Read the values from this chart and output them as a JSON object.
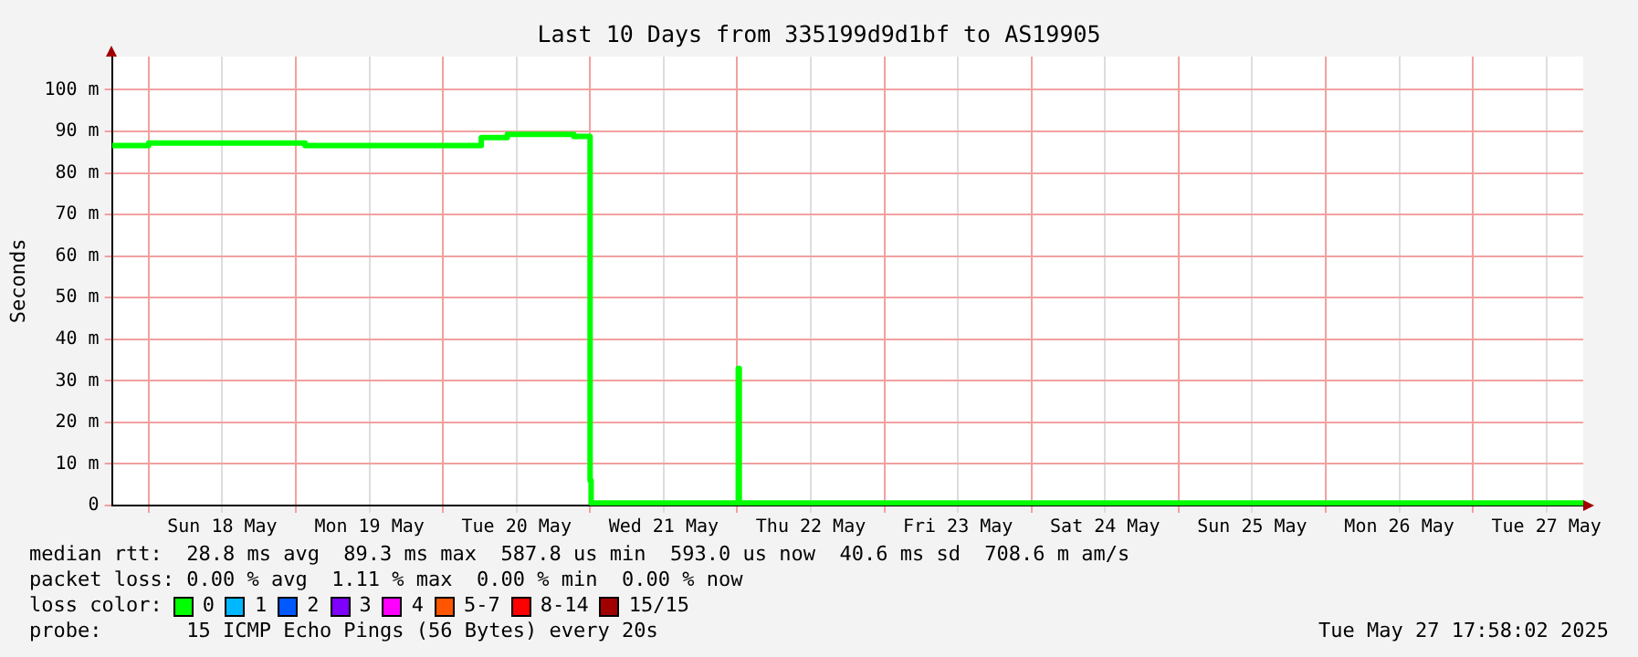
{
  "chart_data": {
    "type": "step",
    "title": "Last 10 Days from 335199d9d1bf to AS19905",
    "ylabel": "Seconds",
    "x": [
      "2025-05-17T18:00",
      "2025-05-18T00:00",
      "2025-05-19T01:30",
      "2025-05-20T06:15",
      "2025-05-20T10:30",
      "2025-05-20T21:20",
      "2025-05-21T00:00",
      "2025-05-21T00:10",
      "2025-05-22T00:10",
      "2025-05-22T00:20",
      "2025-05-27T18:00"
    ],
    "series": [
      {
        "name": "0",
        "color": "#00ff00",
        "values": [
          86.6,
          87.2,
          86.6,
          88.5,
          89.3,
          88.8,
          6,
          0.6,
          33,
          0.6,
          0.6
        ]
      },
      {
        "name": "1",
        "color": "#00b8ff",
        "values": [
          null,
          null,
          null,
          null,
          null,
          null,
          null,
          null,
          null,
          null,
          null
        ]
      },
      {
        "name": "2",
        "color": "#0059ff",
        "values": [
          null,
          null,
          null,
          null,
          null,
          null,
          null,
          null,
          null,
          null,
          null
        ]
      },
      {
        "name": "3",
        "color": "#7e00ff",
        "values": [
          null,
          null,
          null,
          null,
          null,
          null,
          null,
          null,
          null,
          null,
          null
        ]
      },
      {
        "name": "4",
        "color": "#ff00ff",
        "values": [
          null,
          null,
          null,
          null,
          null,
          null,
          null,
          null,
          null,
          null,
          null
        ]
      },
      {
        "name": "5-7",
        "color": "#ff5500",
        "values": [
          null,
          null,
          null,
          null,
          null,
          null,
          null,
          null,
          null,
          null,
          null
        ]
      },
      {
        "name": "8-14",
        "color": "#ff0000",
        "values": [
          null,
          null,
          null,
          null,
          null,
          null,
          null,
          null,
          null,
          null,
          null
        ]
      },
      {
        "name": "15/15",
        "color": "#a10000",
        "values": [
          null,
          null,
          null,
          null,
          null,
          null,
          null,
          null,
          null,
          null,
          null
        ]
      }
    ],
    "legend_title": "loss color:",
    "legend": "bottom",
    "xlim": [
      "2025-05-17T18:00",
      "2025-05-27T18:00"
    ],
    "xticks": [
      {
        "value": "2025-05-18T00:00",
        "label": null
      },
      {
        "value": "2025-05-18T12:00",
        "label": "Sun 18 May"
      },
      {
        "value": "2025-05-19T00:00",
        "label": null
      },
      {
        "value": "2025-05-19T12:00",
        "label": "Mon 19 May"
      },
      {
        "value": "2025-05-20T00:00",
        "label": null
      },
      {
        "value": "2025-05-20T12:00",
        "label": "Tue 20 May"
      },
      {
        "value": "2025-05-21T00:00",
        "label": null
      },
      {
        "value": "2025-05-21T12:00",
        "label": "Wed 21 May"
      },
      {
        "value": "2025-05-22T00:00",
        "label": null
      },
      {
        "value": "2025-05-22T12:00",
        "label": "Thu 22 May"
      },
      {
        "value": "2025-05-23T00:00",
        "label": null
      },
      {
        "value": "2025-05-23T12:00",
        "label": "Fri 23 May"
      },
      {
        "value": "2025-05-24T00:00",
        "label": null
      },
      {
        "value": "2025-05-24T12:00",
        "label": "Sat 24 May"
      },
      {
        "value": "2025-05-25T00:00",
        "label": null
      },
      {
        "value": "2025-05-25T12:00",
        "label": "Sun 25 May"
      },
      {
        "value": "2025-05-26T00:00",
        "label": null
      },
      {
        "value": "2025-05-26T12:00",
        "label": "Mon 26 May"
      },
      {
        "value": "2025-05-27T00:00",
        "label": null
      },
      {
        "value": "2025-05-27T12:00",
        "label": "Tue 27 May"
      }
    ],
    "ylim": [
      0,
      108
    ],
    "yticks": [
      0,
      {
        "value": 10,
        "label": "10 m"
      },
      {
        "value": 20,
        "label": "20 m"
      },
      {
        "value": 30,
        "label": "30 m"
      },
      {
        "value": 40,
        "label": "40 m"
      },
      {
        "value": 50,
        "label": "50 m"
      },
      {
        "value": 60,
        "label": "60 m"
      },
      {
        "value": 70,
        "label": "70 m"
      },
      {
        "value": 80,
        "label": "80 m"
      },
      {
        "value": 90,
        "label": "90 m"
      },
      {
        "value": 100,
        "label": "100 m"
      }
    ],
    "grid": true,
    "annotations": [
      "median rtt:  28.8 ms avg  89.3 ms max  587.8 us min  593.0 us now  40.6 ms sd  708.6 m am/s",
      "packet loss: 0.00 % avg  1.11 % max  0.00 % min  0.00 % now",
      "probe:       15 ICMP Echo Pings (56 Bytes) every 20s",
      "Tue May 27 17:58:02 2025"
    ]
  }
}
